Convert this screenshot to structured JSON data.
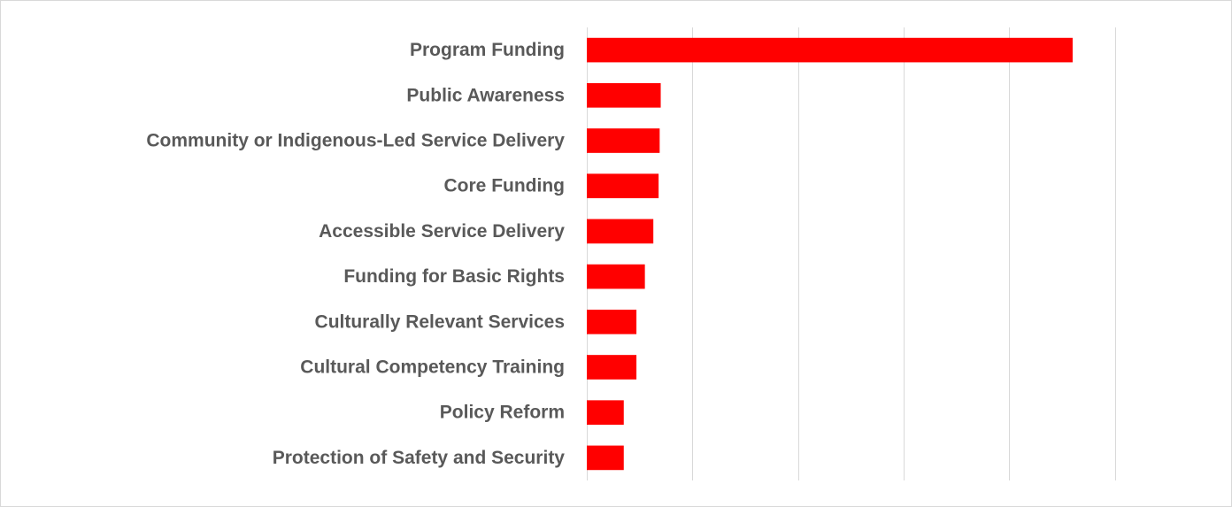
{
  "chart_data": {
    "type": "bar",
    "orientation": "horizontal",
    "title": "",
    "xlabel": "",
    "ylabel": "",
    "categories": [
      "Program Funding",
      "Public Awareness",
      "Community or Indigenous-Led Service Delivery",
      "Core Funding",
      "Accessible Service Delivery",
      "Funding for Basic Rights",
      "Culturally Relevant Services",
      "Cultural Competency Training",
      "Policy Reform",
      "Protection of Safety and Security"
    ],
    "values": [
      46,
      7,
      6.9,
      6.8,
      6.3,
      5.5,
      4.7,
      4.7,
      3.5,
      3.5
    ],
    "xlim": [
      0,
      60
    ],
    "major_unit": 10,
    "gridlines": "vertical",
    "tick_labels_shown": false,
    "legend": "none",
    "bar_color": "#ff0000",
    "gridline_color": "#d9d9d9",
    "label_color": "#595959"
  }
}
